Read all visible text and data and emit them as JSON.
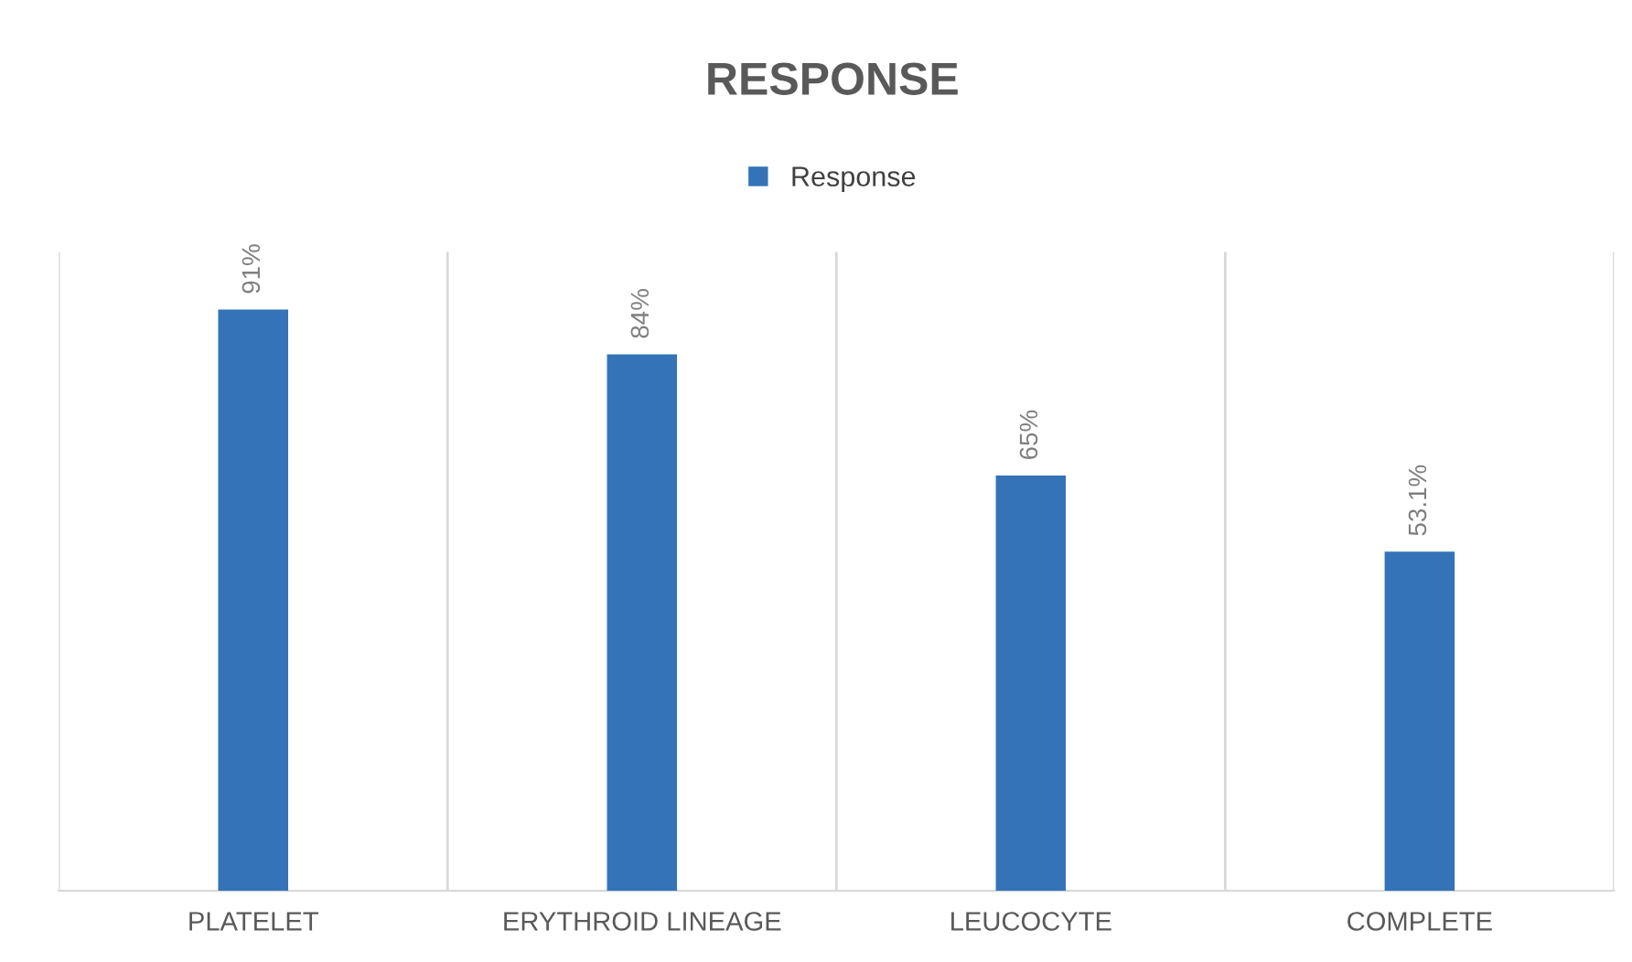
{
  "chart_data": {
    "type": "bar",
    "title": "RESPONSE",
    "categories": [
      "PLATELET",
      "ERYTHROID LINEAGE",
      "LEUCOCYTE",
      "COMPLETE"
    ],
    "series": [
      {
        "name": "Response",
        "color": "#3473b7",
        "values": [
          91,
          84,
          65,
          53.1
        ],
        "value_labels": [
          "91%",
          "84%",
          "65%",
          "53.1%"
        ]
      }
    ],
    "ylim": [
      0,
      100
    ],
    "tick_labels": "x",
    "grid": "x",
    "legend": "top"
  }
}
